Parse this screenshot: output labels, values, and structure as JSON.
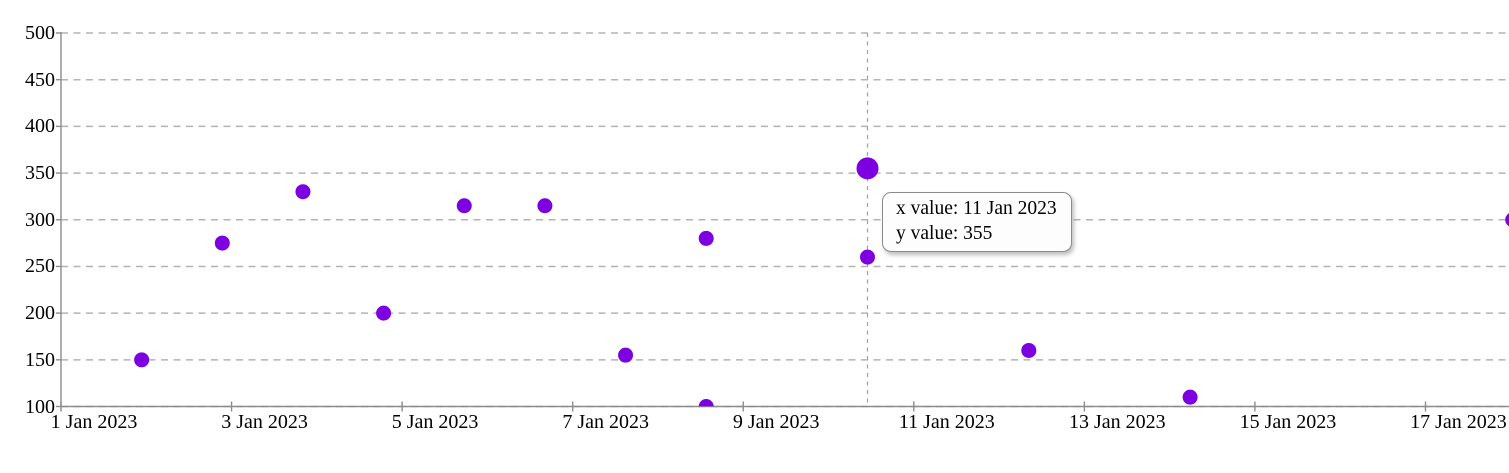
{
  "chart_data": {
    "type": "scatter",
    "title": "",
    "xlabel": "",
    "ylabel": "",
    "grid": true,
    "legend": "none",
    "x_axis": {
      "tick_labels": [
        "1 Jan 2023",
        "3 Jan 2023",
        "5 Jan 2023",
        "7 Jan 2023",
        "9 Jan 2023",
        "11 Jan 2023",
        "13 Jan 2023",
        "15 Jan 2023",
        "17 Jan 2023"
      ],
      "tick_days": [
        1,
        3,
        5,
        7,
        9,
        11,
        13,
        15,
        17
      ]
    },
    "y_axis": {
      "tick_labels": [
        "500",
        "450",
        "400",
        "350",
        "300",
        "250",
        "200",
        "150",
        "100"
      ],
      "min": 100,
      "max": 500,
      "step": 50
    },
    "points": [
      {
        "date": "2 Jan 2023",
        "day": 2,
        "value": 150
      },
      {
        "date": "3 Jan 2023",
        "day": 3,
        "value": 275
      },
      {
        "date": "4 Jan 2023",
        "day": 4,
        "value": 330
      },
      {
        "date": "5 Jan 2023",
        "day": 5,
        "value": 200
      },
      {
        "date": "6 Jan 2023",
        "day": 6,
        "value": 315
      },
      {
        "date": "7 Jan 2023",
        "day": 7,
        "value": 315
      },
      {
        "date": "8 Jan 2023",
        "day": 8,
        "value": 155
      },
      {
        "date": "9 Jan 2023",
        "day": 9,
        "value": 280
      },
      {
        "date": "9 Jan 2023",
        "day": 9,
        "value": 100,
        "clipped_bottom": true
      },
      {
        "date": "11 Jan 2023",
        "day": 11,
        "value": 355,
        "highlighted": true
      },
      {
        "date": "11 Jan 2023",
        "day": 11,
        "value": 260
      },
      {
        "date": "13 Jan 2023",
        "day": 13,
        "value": 160
      },
      {
        "date": "15 Jan 2023",
        "day": 15,
        "value": 110
      },
      {
        "date": "19 Jan 2023",
        "day": 19,
        "value": 300,
        "partially_visible_right_edge": true
      }
    ],
    "crosshair_day": 11
  },
  "tooltip": {
    "x_label": "x value: 11 Jan 2023",
    "y_label": "y value: 355"
  },
  "colors": {
    "marker": "#7d00e0",
    "grid": "#b3b3b3",
    "axis": "#8c8c8c",
    "tick": "#8c8c8c",
    "crosshair": "#a6a6a6",
    "text": "#000000",
    "tooltip_bg": "#fdfdfd",
    "tooltip_border": "#8a8a8a"
  }
}
